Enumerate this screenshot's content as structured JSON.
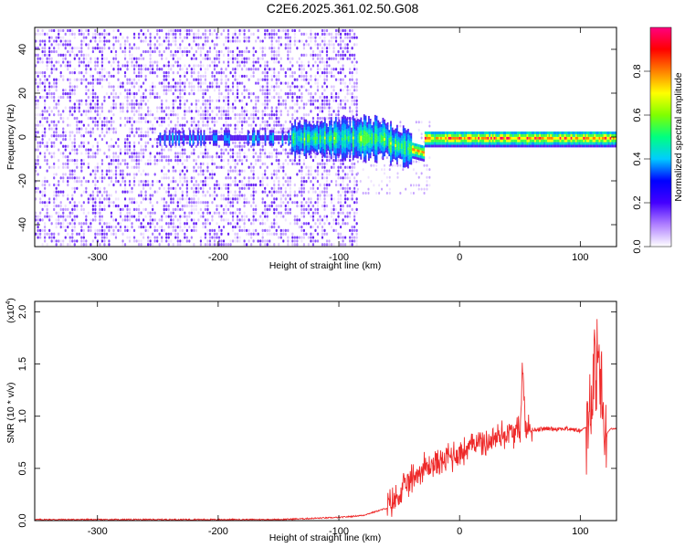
{
  "title": "C2E6.2025.361.02.50.G08",
  "colors": {
    "snr_line": "#ee2a2a",
    "axis": "#000000",
    "background": "#ffffff"
  },
  "chart_data": [
    {
      "type": "heatmap",
      "xlabel": "Height of straight line (km)",
      "ylabel": "Frequency (Hz)",
      "xlim": [
        -352,
        130
      ],
      "ylim": [
        -50,
        50
      ],
      "xticks": [
        -300,
        -200,
        -100,
        0,
        100
      ],
      "yticks": [
        -40,
        -20,
        0,
        20,
        40
      ],
      "colorbar": {
        "label": "Normalized spectral amplitude",
        "range": [
          0,
          1
        ],
        "ticks": [
          "0.0",
          "0.2",
          "0.4",
          "0.6",
          "0.8"
        ],
        "tick_values": [
          0.0,
          0.2,
          0.4,
          0.6,
          0.8
        ],
        "colormap": [
          "#ffffff",
          "#b080ff",
          "#4400ff",
          "#0000ff",
          "#00ccff",
          "#00ff80",
          "#80ff00",
          "#ffff00",
          "#ff8000",
          "#ff0000",
          "#ff0080"
        ]
      },
      "description_features": {
        "noise_region_x": [
          -352,
          -85
        ],
        "signal_ridge_freq": 0,
        "signal_start_x": -140,
        "strong_signal_x": [
          -40,
          125
        ]
      }
    },
    {
      "type": "line",
      "xlabel": "Height of straight line (km)",
      "ylabel": "SNR (10 * v/v)",
      "y_multiplier_label": "(x10",
      "y_multiplier_exp": "4",
      "xlim": [
        -352,
        130
      ],
      "ylim": [
        0,
        2.1
      ],
      "xticks": [
        -300,
        -200,
        -100,
        0,
        100
      ],
      "yticks": [
        "0.0",
        "0.5",
        "1.0",
        "1.5",
        "2.0"
      ],
      "ytick_values": [
        0.0,
        0.5,
        1.0,
        1.5,
        2.0
      ],
      "series": [
        {
          "x": [
            -352,
            -150,
            -100,
            -80,
            -60,
            -50,
            -40,
            -30,
            -20,
            -10,
            0,
            10,
            15,
            20,
            30,
            40,
            50,
            52,
            55,
            60,
            70,
            80,
            90,
            100,
            105,
            110,
            115,
            120,
            125,
            130
          ],
          "values": [
            0.01,
            0.01,
            0.03,
            0.05,
            0.12,
            0.25,
            0.4,
            0.5,
            0.55,
            0.6,
            0.65,
            0.72,
            0.78,
            0.74,
            0.8,
            0.83,
            0.85,
            1.45,
            0.86,
            0.87,
            0.88,
            0.88,
            0.88,
            0.86,
            0.9,
            1.2,
            1.6,
            0.8,
            0.88,
            0.88
          ]
        }
      ]
    }
  ]
}
